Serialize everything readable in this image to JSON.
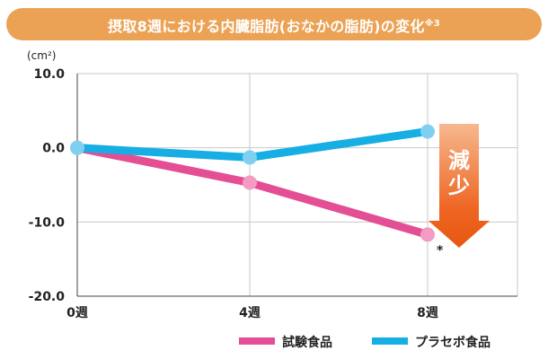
{
  "header": {
    "title": "摂取8週における内臓脂肪(おなかの脂肪)の変化",
    "note": "※3"
  },
  "chart_data": {
    "type": "line",
    "title": "摂取8週における内臓脂肪(おなかの脂肪)の変化※3",
    "ylabel": "(cm²)",
    "xlabel": "",
    "categories": [
      "0週",
      "4週",
      "8週"
    ],
    "yticks": [
      "10.0",
      "0.0",
      "-10.0",
      "-20.0"
    ],
    "ylim": [
      -20,
      10
    ],
    "grid": true,
    "series": [
      {
        "name": "試験食品",
        "values": [
          0,
          -4.7,
          -11.7
        ],
        "color": "#e34e94"
      },
      {
        "name": "プラセボ食品",
        "values": [
          0,
          -1.3,
          2.2
        ],
        "color": "#17aee3"
      }
    ],
    "annotations": {
      "arrow_label": "減少",
      "arrow_color": "#ee6421",
      "significance_mark": "*"
    },
    "legend": "bottom-right"
  }
}
